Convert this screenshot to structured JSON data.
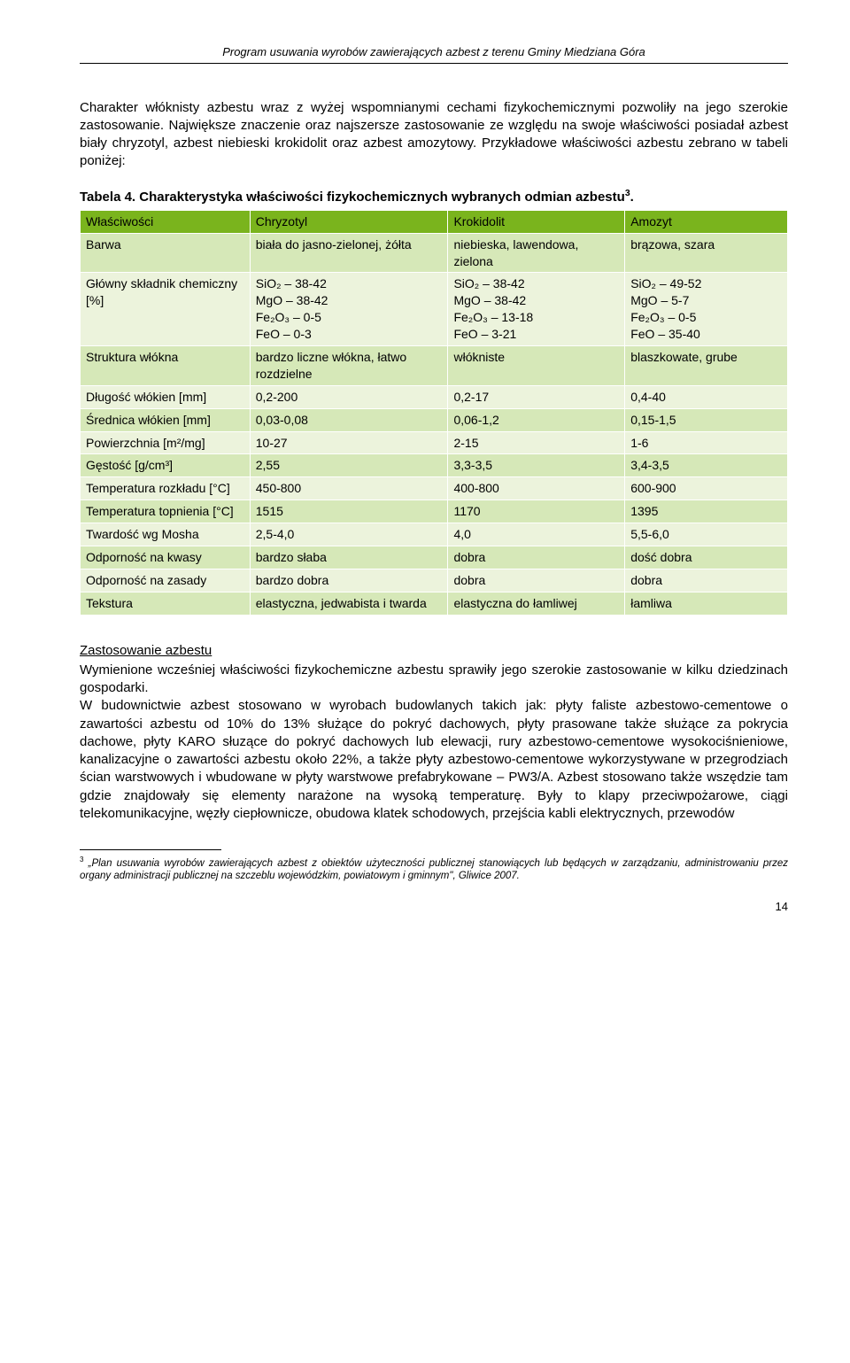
{
  "header": "Program usuwania wyrobów zawierających azbest z terenu Gminy Miedziana Góra",
  "intro": "Charakter włóknisty azbestu wraz z wyżej wspomnianymi cechami fizykochemicznymi pozwoliły na jego szerokie zastosowanie. Największe znaczenie oraz najszersze zastosowanie ze względu na swoje właściwości posiadał azbest biały chryzotyl, azbest niebieski krokidolit oraz azbest amozytowy. Przykładowe właściwości azbestu zebrano w tabeli poniżej:",
  "table_caption_prefix": "Tabela 4. Charakterystyka właściwości fizykochemicznych wybranych odmian azbestu",
  "table_caption_sup": "3",
  "cols": [
    "Właściwości",
    "Chryzotyl",
    "Krokidolit",
    "Amozyt"
  ],
  "rows": {
    "barwa": {
      "l": "Barwa",
      "c": "biała do jasno-zielonej, żółta",
      "k": "niebieska, lawendowa, zielona",
      "a": "brązowa, szara"
    },
    "skladnik": {
      "l": "Główny składnik chemiczny [%]",
      "c": [
        "SiO₂ – 38-42",
        "MgO – 38-42",
        "Fe₂O₃ – 0-5",
        "FeO – 0-3"
      ],
      "k": [
        "SiO₂ – 38-42",
        "MgO – 38-42",
        "Fe₂O₃ – 13-18",
        "FeO – 3-21"
      ],
      "a": [
        "SiO₂ – 49-52",
        "MgO – 5-7",
        "Fe₂O₃ – 0-5",
        "FeO – 35-40"
      ]
    },
    "struktura": {
      "l": "Struktura włókna",
      "c": "bardzo liczne włókna, łatwo rozdzielne",
      "k": "włókniste",
      "a": "blaszkowate, grube"
    },
    "dlugosc": {
      "l": "Długość włókien [mm]",
      "c": "0,2-200",
      "k": "0,2-17",
      "a": "0,4-40"
    },
    "srednica": {
      "l": "Średnica włókien [mm]",
      "c": "0,03-0,08",
      "k": "0,06-1,2",
      "a": "0,15-1,5"
    },
    "pow": {
      "l": "Powierzchnia [m²/mg]",
      "c": "10-27",
      "k": "2-15",
      "a": "1-6"
    },
    "gestosc": {
      "l": "Gęstość [g/cm³]",
      "c": "2,55",
      "k": "3,3-3,5",
      "a": "3,4-3,5"
    },
    "trozk": {
      "l": "Temperatura rozkładu [°C]",
      "c": "450-800",
      "k": "400-800",
      "a": "600-900"
    },
    "ttop": {
      "l": "Temperatura topnienia [°C]",
      "c": "1515",
      "k": "1170",
      "a": "1395"
    },
    "twardosc": {
      "l": "Twardość wg Mosha",
      "c": "2,5-4,0",
      "k": "4,0",
      "a": "5,5-6,0"
    },
    "kwasy": {
      "l": "Odporność na kwasy",
      "c": "bardzo słaba",
      "k": "dobra",
      "a": "dość dobra"
    },
    "zasady": {
      "l": "Odporność na zasady",
      "c": "bardzo dobra",
      "k": "dobra",
      "a": "dobra"
    },
    "tekstura": {
      "l": "Tekstura",
      "c": "elastyczna, jedwabista i twarda",
      "k": "elastyczna do łamliwej",
      "a": "łamliwa"
    }
  },
  "section_title": "Zastosowanie azbestu",
  "section_body": "Wymienione wcześniej właściwości fizykochemiczne azbestu sprawiły jego szerokie zastosowanie w kilku dziedzinach gospodarki.\nW budownictwie azbest stosowano w wyrobach budowlanych takich jak: płyty faliste azbestowo-cementowe o zawartości azbestu od 10% do 13% służące do pokryć dachowych, płyty prasowane także służące za pokrycia dachowe, płyty KARO słuzące do pokryć dachowych lub elewacji, rury azbestowo-cementowe wysokociśnieniowe, kanalizacyjne o zawartości azbestu około 22%, a także płyty azbestowo-cementowe wykorzystywane w przegrodziach ścian warstwowych i wbudowane w płyty warstwowe prefabrykowane – PW3/A. Azbest stosowano także wszędzie tam gdzie znajdowały się elementy narażone na wysoką temperaturę. Były to klapy przeciwpożarowe, ciągi telekomunikacyjne, węzły ciepłownicze, obudowa klatek schodowych, przejścia kabli elektrycznych, przewodów",
  "footnote_num": "3",
  "footnote": "„Plan usuwania wyrobów zawierających azbest z obiektów użyteczności publicznej stanowiących lub będących w zarządzaniu, administrowaniu przez organy administracji publicznej na szczeblu wojewódzkim, powiatowym i gminnym\", Gliwice 2007.",
  "page": "14"
}
